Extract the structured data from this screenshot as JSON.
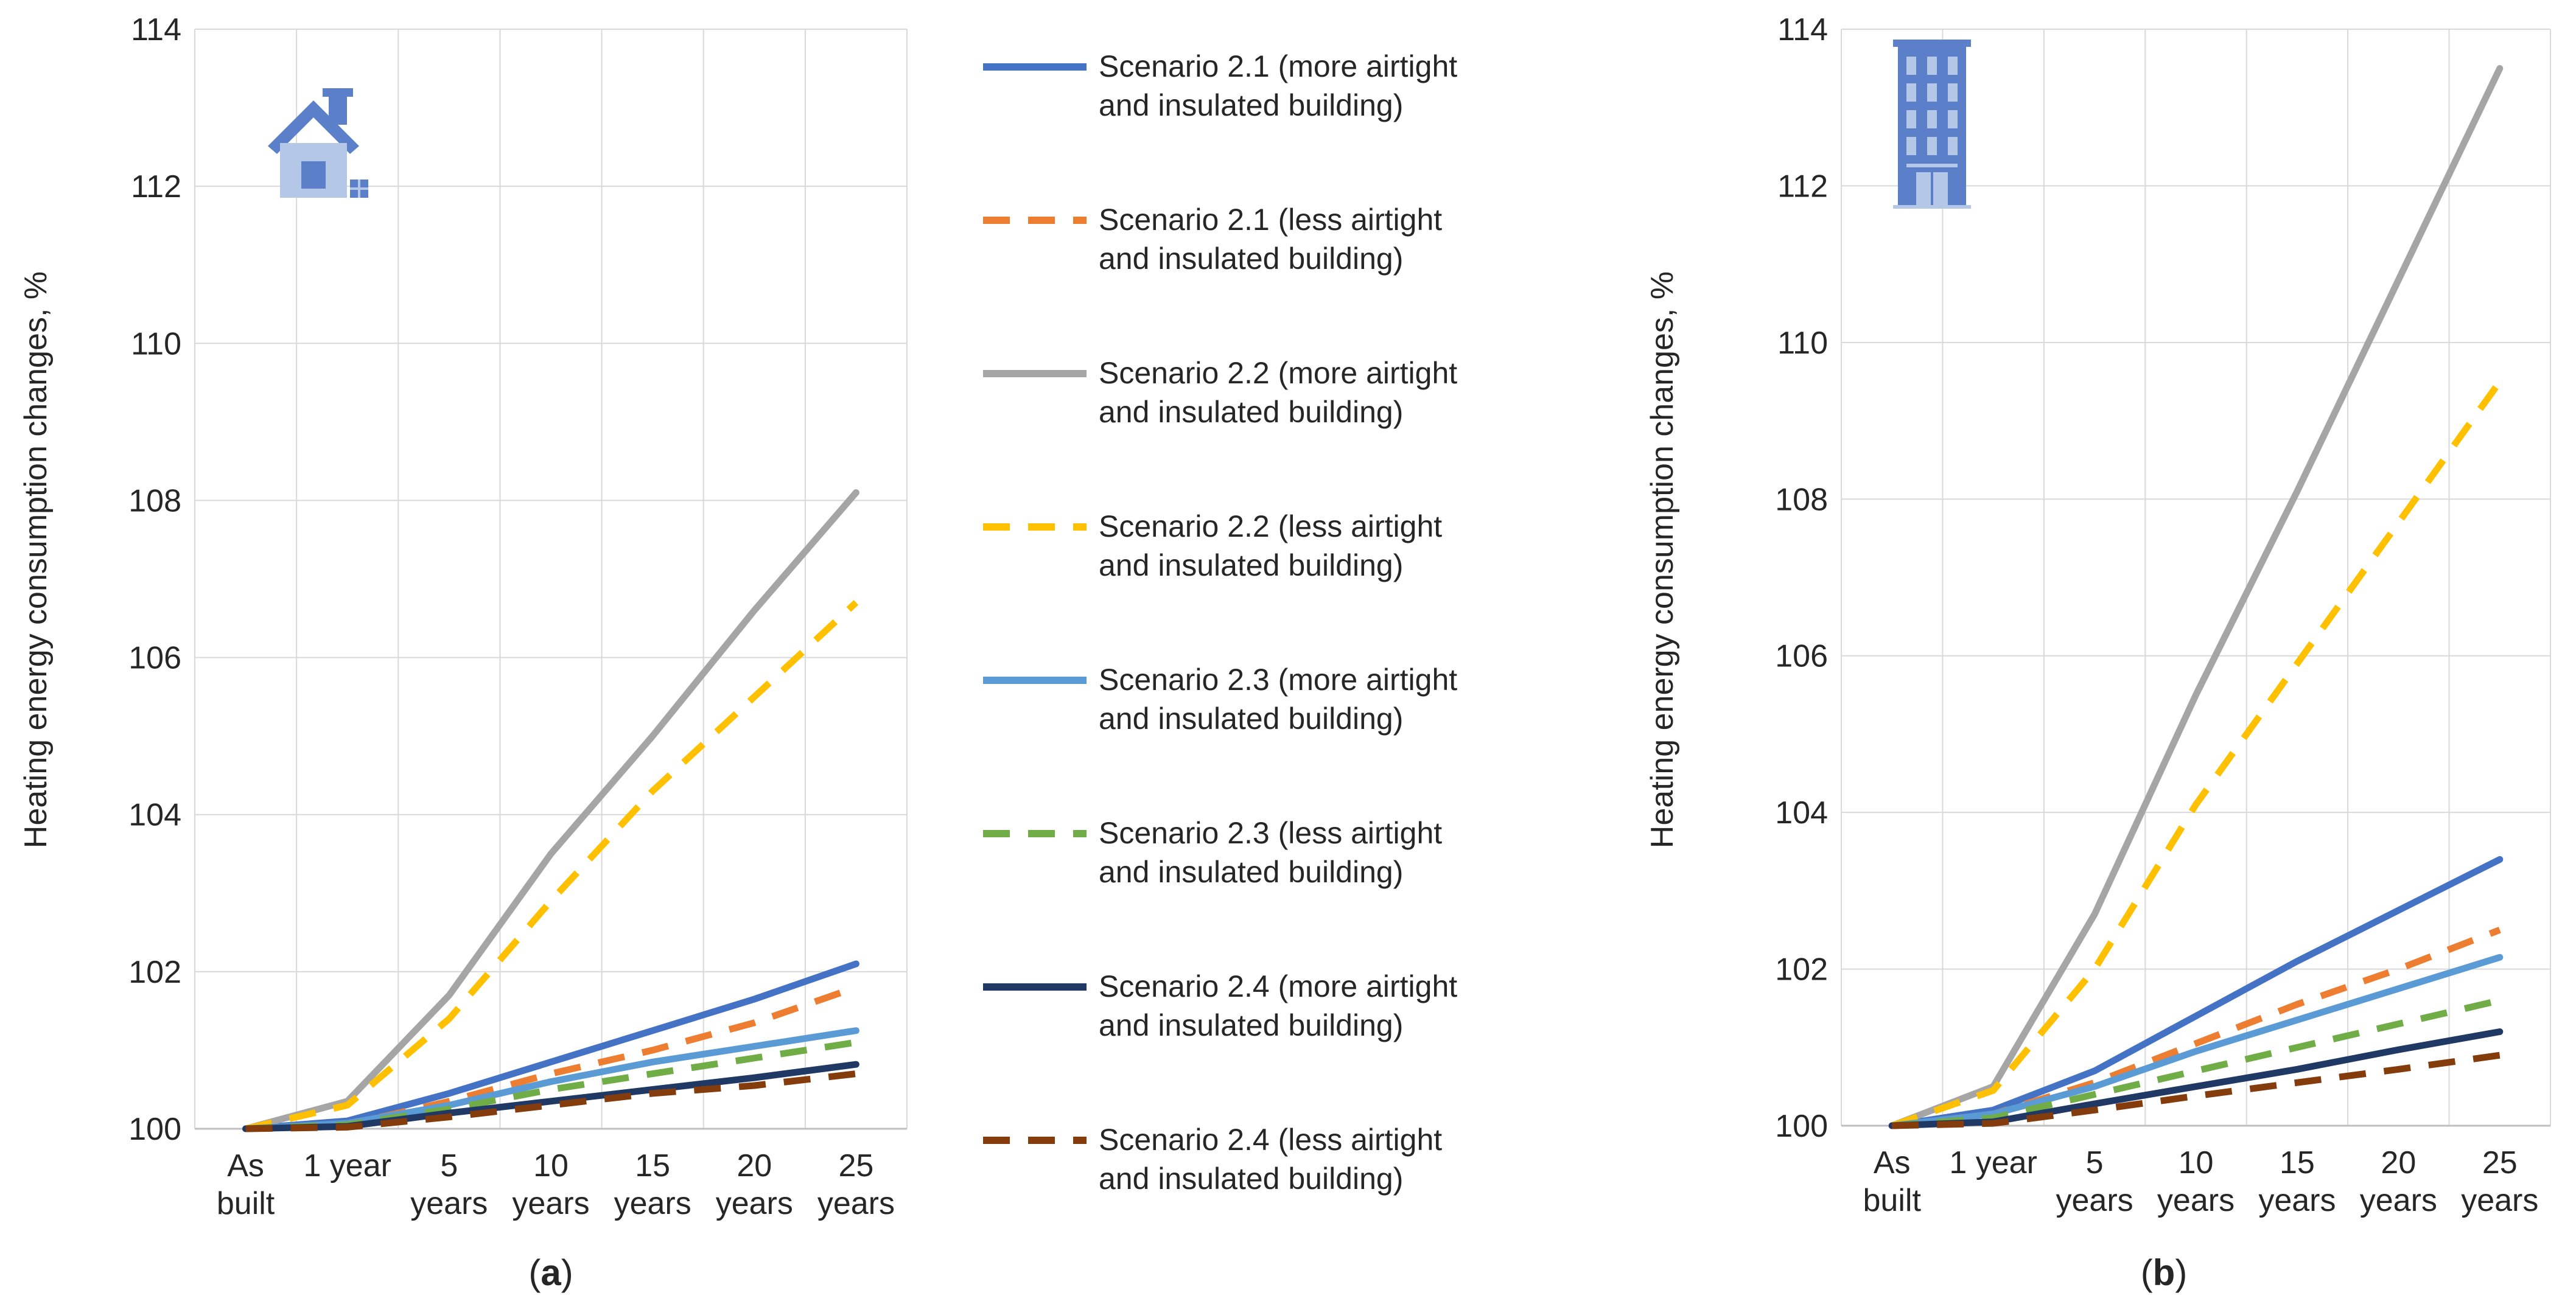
{
  "chart_data": [
    {
      "type": "line",
      "panel": "(a)",
      "panel_letter": "a",
      "icon": "house-icon",
      "ylabel": "Heating energy consumption changes, %",
      "ylim": [
        100,
        114
      ],
      "yticks": [
        "100",
        "102",
        "104",
        "106",
        "108",
        "110",
        "112",
        "114"
      ],
      "categories": [
        [
          "As",
          "built"
        ],
        [
          "1 year"
        ],
        [
          "5",
          "years"
        ],
        [
          "10",
          "years"
        ],
        [
          "15",
          "years"
        ],
        [
          "20",
          "years"
        ],
        [
          "25",
          "years"
        ]
      ],
      "series": [
        {
          "name": "Scenario 2.1 (more airtight and insulated building)",
          "color": "#4472c4",
          "dash": false,
          "values": [
            100,
            100.1,
            100.45,
            100.85,
            101.25,
            101.65,
            102.1
          ]
        },
        {
          "name": "Scenario 2.1 (less airtight and insulated building)",
          "color": "#ed7d31",
          "dash": true,
          "values": [
            100,
            100.05,
            100.35,
            100.7,
            101.0,
            101.35,
            101.8
          ]
        },
        {
          "name": "Scenario 2.2 (more airtight and insulated building)",
          "color": "#a5a5a5",
          "dash": false,
          "values": [
            100,
            100.35,
            101.7,
            103.5,
            105.0,
            106.6,
            108.1
          ]
        },
        {
          "name": "Scenario 2.2 (less airtight and insulated building)",
          "color": "#ffc000",
          "dash": true,
          "values": [
            100,
            100.3,
            101.4,
            102.9,
            104.3,
            105.5,
            106.7
          ]
        },
        {
          "name": "Scenario 2.3 (more airtight and insulated building)",
          "color": "#5b9bd5",
          "dash": false,
          "values": [
            100,
            100.07,
            100.3,
            100.6,
            100.85,
            101.05,
            101.25
          ]
        },
        {
          "name": "Scenario 2.3 (less airtight and insulated building)",
          "color": "#70ad47",
          "dash": true,
          "values": [
            100,
            100.05,
            100.25,
            100.5,
            100.7,
            100.9,
            101.1
          ]
        },
        {
          "name": "Scenario 2.4 (more airtight and insulated building)",
          "color": "#1f3864",
          "dash": false,
          "values": [
            100,
            100.03,
            100.2,
            100.35,
            100.5,
            100.65,
            100.82
          ]
        },
        {
          "name": "Scenario 2.4 (less airtight and insulated building)",
          "color": "#843c0c",
          "dash": true,
          "values": [
            100,
            100.02,
            100.15,
            100.3,
            100.45,
            100.55,
            100.7
          ]
        }
      ]
    },
    {
      "type": "line",
      "panel": "(b)",
      "panel_letter": "b",
      "icon": "office-building-icon",
      "ylabel": "Heating energy consumption changes, %",
      "ylim": [
        100,
        114
      ],
      "yticks": [
        "100",
        "102",
        "104",
        "106",
        "108",
        "110",
        "112",
        "114"
      ],
      "categories": [
        [
          "As",
          "built"
        ],
        [
          "1 year"
        ],
        [
          "5",
          "years"
        ],
        [
          "10",
          "years"
        ],
        [
          "15",
          "years"
        ],
        [
          "20",
          "years"
        ],
        [
          "25",
          "years"
        ]
      ],
      "series": [
        {
          "name": "Scenario 2.1 (more airtight and insulated building)",
          "color": "#4472c4",
          "dash": false,
          "values": [
            100,
            100.2,
            100.7,
            101.4,
            102.1,
            102.75,
            103.4
          ]
        },
        {
          "name": "Scenario 2.1 (less airtight and insulated building)",
          "color": "#ed7d31",
          "dash": true,
          "values": [
            100,
            100.15,
            100.55,
            101.05,
            101.55,
            102.0,
            102.5
          ]
        },
        {
          "name": "Scenario 2.2 (more airtight and insulated building)",
          "color": "#a5a5a5",
          "dash": false,
          "values": [
            100,
            100.5,
            102.7,
            105.5,
            108.1,
            110.8,
            113.5
          ]
        },
        {
          "name": "Scenario 2.2 (less airtight and insulated building)",
          "color": "#ffc000",
          "dash": true,
          "values": [
            100,
            100.45,
            102.0,
            104.1,
            105.9,
            107.7,
            109.5
          ]
        },
        {
          "name": "Scenario 2.3 (more airtight and insulated building)",
          "color": "#5b9bd5",
          "dash": false,
          "values": [
            100,
            100.15,
            100.5,
            100.95,
            101.35,
            101.75,
            102.15
          ]
        },
        {
          "name": "Scenario 2.3 (less airtight and insulated building)",
          "color": "#70ad47",
          "dash": true,
          "values": [
            100,
            100.1,
            100.4,
            100.7,
            101.0,
            101.3,
            101.6
          ]
        },
        {
          "name": "Scenario 2.4 (more airtight and insulated building)",
          "color": "#1f3864",
          "dash": false,
          "values": [
            100,
            100.05,
            100.28,
            100.5,
            100.72,
            100.97,
            101.2
          ]
        },
        {
          "name": "Scenario 2.4 (less airtight and insulated building)",
          "color": "#843c0c",
          "dash": true,
          "values": [
            100,
            100.03,
            100.2,
            100.38,
            100.55,
            100.72,
            100.9
          ]
        }
      ]
    }
  ],
  "legend": {
    "entries": [
      {
        "line1": "Scenario 2.1 (more airtight",
        "line2": "and insulated building)",
        "color": "#4472c4",
        "dash": false
      },
      {
        "line1": "Scenario 2.1 (less airtight",
        "line2": "and insulated building)",
        "color": "#ed7d31",
        "dash": true
      },
      {
        "line1": "Scenario 2.2 (more airtight",
        "line2": "and insulated building)",
        "color": "#a5a5a5",
        "dash": false
      },
      {
        "line1": "Scenario 2.2 (less airtight",
        "line2": "and insulated building)",
        "color": "#ffc000",
        "dash": true
      },
      {
        "line1": "Scenario 2.3 (more airtight",
        "line2": "and insulated building)",
        "color": "#5b9bd5",
        "dash": false
      },
      {
        "line1": "Scenario 2.3 (less airtight",
        "line2": "and insulated building)",
        "color": "#70ad47",
        "dash": true
      },
      {
        "line1": "Scenario 2.4 (more airtight",
        "line2": "and insulated building)",
        "color": "#1f3864",
        "dash": false
      },
      {
        "line1": "Scenario 2.4 (less airtight",
        "line2": "and insulated building)",
        "color": "#843c0c",
        "dash": true
      }
    ]
  },
  "colors": {
    "grid": "#d9d9d9",
    "axis": "#bfbfbf",
    "icon": "#5b7fc8",
    "icon_light": "#b4c7e7"
  }
}
